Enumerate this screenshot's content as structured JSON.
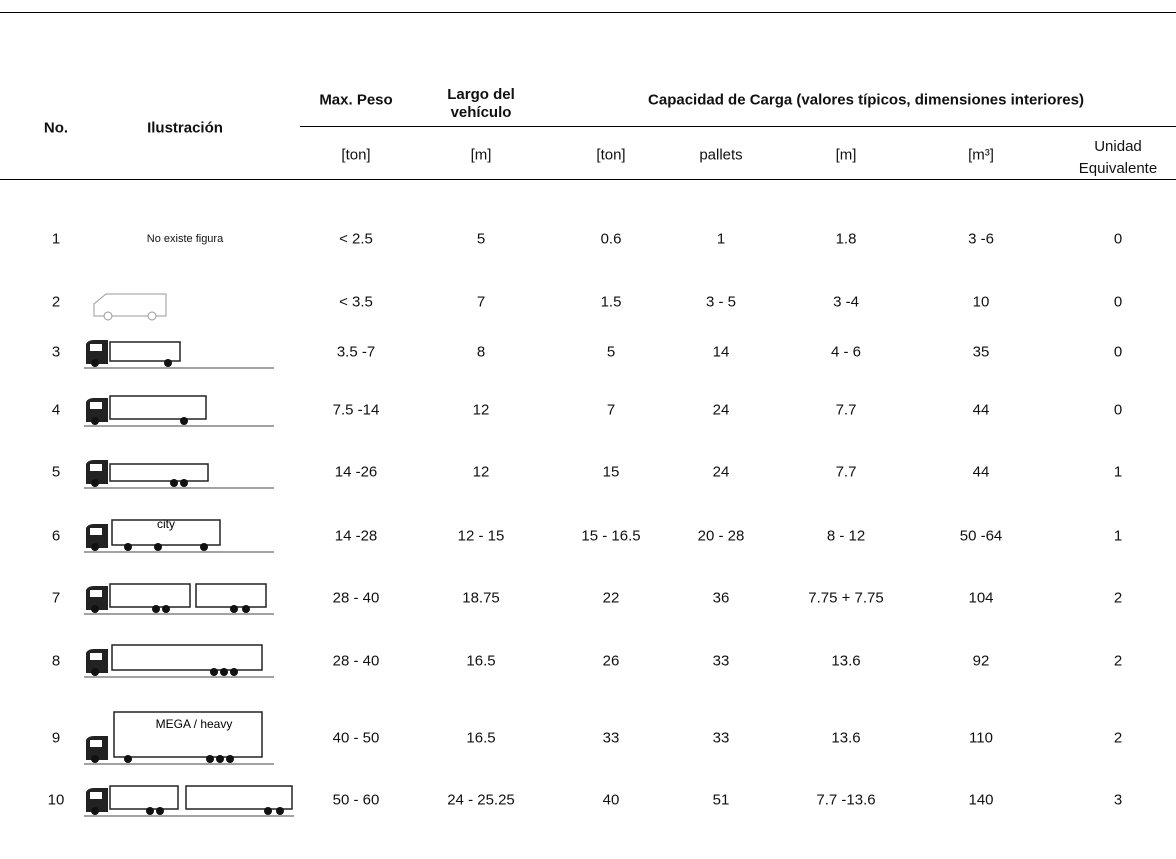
{
  "header": {
    "no": "No.",
    "illustration": "Ilustración",
    "max_weight": "Max. Peso",
    "length": "Largo del vehículo",
    "capacity": "Capacidad de Carga (valores típicos, dimensiones interiores)",
    "units": [
      "[ton]",
      "[m]",
      "[ton]",
      "pallets",
      "[m]",
      "[m³]",
      "Unidad Equivalente"
    ]
  },
  "rows": [
    {
      "no": "1",
      "illustration": "No existe figura",
      "cells": [
        "< 2.5",
        "5",
        "0.6",
        "1",
        "1.8",
        "3 -6",
        "0"
      ]
    },
    {
      "no": "2",
      "cells": [
        "< 3.5",
        "7",
        "1.5",
        "3 - 5",
        "3 -4",
        "10",
        "0"
      ]
    },
    {
      "no": "3",
      "cells": [
        "3.5 -7",
        "8",
        "5",
        "14",
        "4 - 6",
        "35",
        "0"
      ]
    },
    {
      "no": "4",
      "cells": [
        "7.5 -14",
        "12",
        "7",
        "24",
        "7.7",
        "44",
        "0"
      ]
    },
    {
      "no": "5",
      "cells": [
        "14 -26",
        "12",
        "15",
        "24",
        "7.7",
        "44",
        "1"
      ]
    },
    {
      "no": "6",
      "illustration": "city",
      "cells": [
        "14 -28",
        "12 - 15",
        "15 - 16.5",
        "20 - 28",
        "8 - 12",
        "50 -64",
        "1"
      ]
    },
    {
      "no": "7",
      "cells": [
        "28 - 40",
        "18.75",
        "22",
        "36",
        "7.75 + 7.75",
        "104",
        "2"
      ]
    },
    {
      "no": "8",
      "cells": [
        "28 - 40",
        "16.5",
        "26",
        "33",
        "13.6",
        "92",
        "2"
      ]
    },
    {
      "no": "9",
      "illustration": "MEGA / heavy",
      "cells": [
        "40 - 50",
        "16.5",
        "33",
        "33",
        "13.6",
        "110",
        "2"
      ]
    },
    {
      "no": "10",
      "cells": [
        "50 - 60",
        "24 - 25.25",
        "40",
        "51",
        "7.7 -13.6",
        "140",
        "3"
      ]
    }
  ]
}
